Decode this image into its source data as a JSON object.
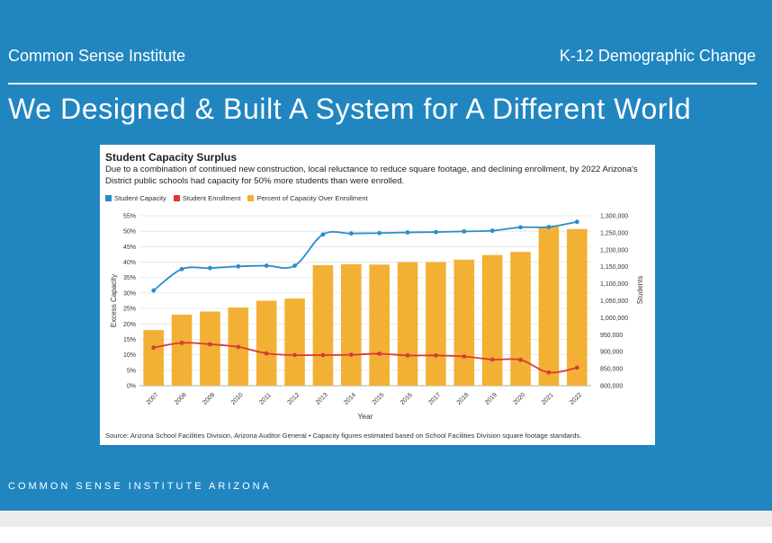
{
  "header": {
    "org": "Common Sense Institute",
    "topic": "K-12 Demographic Change",
    "title": "We Designed & Built A System for A Different World"
  },
  "footer": {
    "text": "COMMON SENSE INSTITUTE ARIZONA"
  },
  "colors": {
    "background": "#2186c0",
    "capacity": "#2b8ccb",
    "enrollment": "#d93a34",
    "percent_bar": "#f2b135"
  },
  "chart_data": {
    "type": "bar",
    "title": "Student Capacity Surplus",
    "subtitle": "Due to a combination of continued new construction, local reluctance to reduce square footage, and declining enrollment, by 2022 Arizona's District public schools had capacity for 50% more students than were enrolled.",
    "legend": [
      "Student Capacity",
      "Student Enrollment",
      "Percent of Capacity Over Enrollment"
    ],
    "categories": [
      "2007",
      "2008",
      "2009",
      "2010",
      "2011",
      "2012",
      "2013",
      "2014",
      "2015",
      "2016",
      "2017",
      "2018",
      "2019",
      "2020",
      "2021",
      "2022"
    ],
    "series": [
      {
        "name": "Percent of Capacity Over Enrollment",
        "type": "bar",
        "axis": "left",
        "values": [
          18,
          23,
          24,
          25.3,
          27.5,
          28.2,
          39,
          39.3,
          39.2,
          40,
          40,
          40.8,
          42.3,
          43.3,
          51.5,
          50.7
        ]
      },
      {
        "name": "Student Capacity",
        "type": "line",
        "axis": "right",
        "values": [
          1080000,
          1143000,
          1146000,
          1151000,
          1153000,
          1153000,
          1245000,
          1248000,
          1249000,
          1251000,
          1252000,
          1254000,
          1256000,
          1266000,
          1267000,
          1282000
        ]
      },
      {
        "name": "Student Enrollment",
        "type": "line",
        "axis": "right",
        "values": [
          912000,
          926000,
          922000,
          914000,
          895000,
          890000,
          890000,
          891000,
          894000,
          889000,
          889000,
          886000,
          877000,
          876000,
          839000,
          853000
        ]
      }
    ],
    "xlabel": "Year",
    "ylabel": "Excess Capacity",
    "ylabel_right": "Students",
    "ylim": [
      0,
      55
    ],
    "ylim_right": [
      800000,
      1300000
    ],
    "yticks": [
      "0%",
      "5%",
      "10%",
      "15%",
      "20%",
      "25%",
      "30%",
      "35%",
      "40%",
      "45%",
      "50%",
      "55%"
    ],
    "yticks_right": [
      "800,000",
      "850,000",
      "900,000",
      "950,000",
      "1,000,000",
      "1,050,000",
      "1,100,000",
      "1,150,000",
      "1,200,000",
      "1,250,000",
      "1,300,000"
    ],
    "source": "Source: Arizona School Facilities Division, Arizona Auditor General • Capacity figures estimated based on School Facilities Division square footage standards."
  }
}
